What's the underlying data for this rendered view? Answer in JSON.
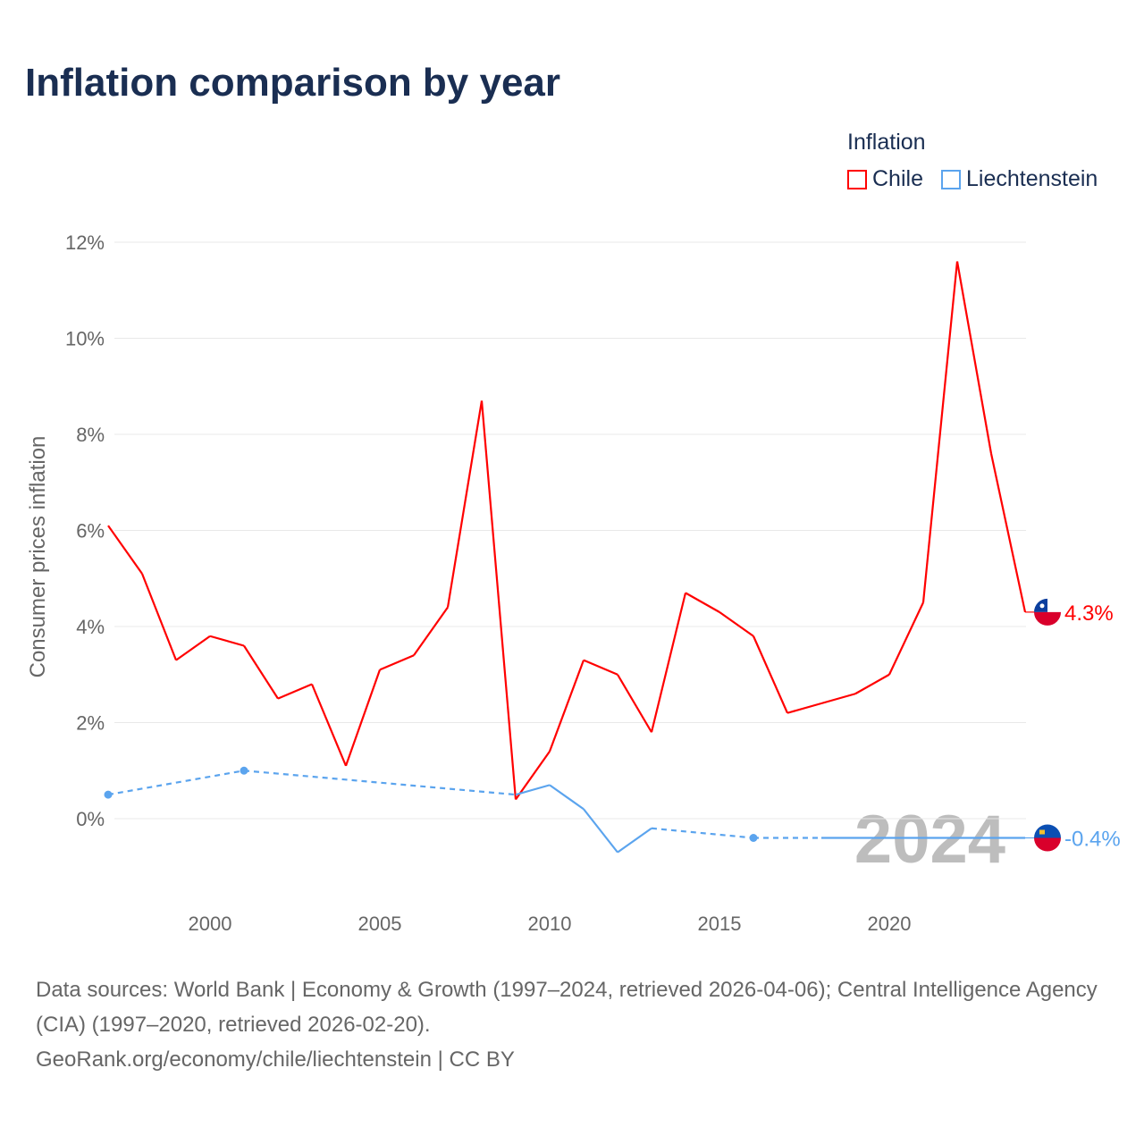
{
  "title": "Inflation comparison by year",
  "legend": {
    "title": "Inflation",
    "items": [
      {
        "label": "Chile",
        "color": "#ff0000"
      },
      {
        "label": "Liechtenstein",
        "color": "#5ba4ee"
      }
    ]
  },
  "source": {
    "line1": "Data sources: World Bank | Economy & Growth (1997–2024, retrieved 2026-04-06); Central Intelligence Agency (CIA) (1997–2020, retrieved 2026-02-20).",
    "line2": "GeoRank.org/economy/chile/liechtenstein | CC BY"
  },
  "chart_data": {
    "type": "line",
    "title": "Inflation comparison by year",
    "xlabel": "",
    "ylabel": "Consumer prices inflation",
    "xlim": [
      1997,
      2024
    ],
    "ylim": [
      -1.5,
      12.5
    ],
    "xticks": [
      2000,
      2005,
      2010,
      2015,
      2020
    ],
    "yticks": [
      0,
      2,
      4,
      6,
      8,
      10,
      12
    ],
    "ytick_labels": [
      "0%",
      "2%",
      "4%",
      "6%",
      "8%",
      "10%",
      "12%"
    ],
    "grid": true,
    "legend_position": "top-right",
    "watermark_year": "2024",
    "x": [
      1997,
      1998,
      1999,
      2000,
      2001,
      2002,
      2003,
      2004,
      2005,
      2006,
      2007,
      2008,
      2009,
      2010,
      2011,
      2012,
      2013,
      2014,
      2015,
      2016,
      2017,
      2018,
      2019,
      2020,
      2021,
      2022,
      2023,
      2024
    ],
    "series": [
      {
        "name": "Chile",
        "color": "#ff0000",
        "end_label": "4.3%",
        "values": [
          6.1,
          5.1,
          3.3,
          3.8,
          3.6,
          2.5,
          2.8,
          1.1,
          3.1,
          3.4,
          4.4,
          8.7,
          0.4,
          1.4,
          3.3,
          3.0,
          1.8,
          4.7,
          4.3,
          3.8,
          2.2,
          2.4,
          2.6,
          3.0,
          4.5,
          11.6,
          7.6,
          4.3
        ]
      },
      {
        "name": "Liechtenstein",
        "color": "#5ba4ee",
        "end_label": "-0.4%",
        "values": [
          0.5,
          null,
          null,
          null,
          1.0,
          null,
          null,
          null,
          null,
          null,
          null,
          null,
          0.5,
          0.7,
          0.2,
          -0.7,
          -0.2,
          null,
          null,
          -0.4,
          null,
          -0.4,
          -0.4,
          -0.4,
          -0.4,
          -0.4,
          -0.4,
          -0.4
        ]
      }
    ]
  }
}
